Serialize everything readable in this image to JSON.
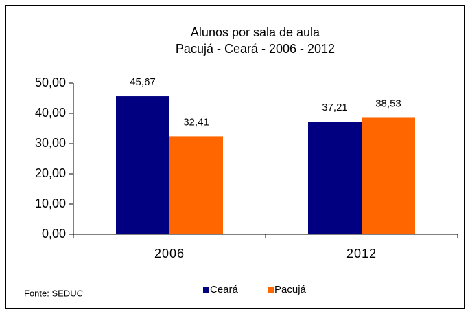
{
  "chart_data": {
    "type": "bar",
    "title": "Alunos por sala de aula",
    "subtitle": "Pacujá - Ceará - 2006 - 2012",
    "categories": [
      "2006",
      "2012"
    ],
    "series": [
      {
        "name": "Ceará",
        "color": "#000080",
        "values": [
          45.67,
          37.21
        ],
        "value_labels": [
          "45,67",
          "37,21"
        ]
      },
      {
        "name": "Pacujá",
        "color": "#ff6600",
        "values": [
          32.41,
          38.53
        ],
        "value_labels": [
          "32,41",
          "38,53"
        ]
      }
    ],
    "ylim": [
      0,
      50
    ],
    "yticks": [
      {
        "value": 0,
        "label": "0,00"
      },
      {
        "value": 10,
        "label": "10,00"
      },
      {
        "value": 20,
        "label": "20,00"
      },
      {
        "value": 30,
        "label": "30,00"
      },
      {
        "value": 40,
        "label": "40,00"
      },
      {
        "value": 50,
        "label": "50,00"
      }
    ],
    "legend": "bottom",
    "source": "Fonte: SEDUC"
  }
}
